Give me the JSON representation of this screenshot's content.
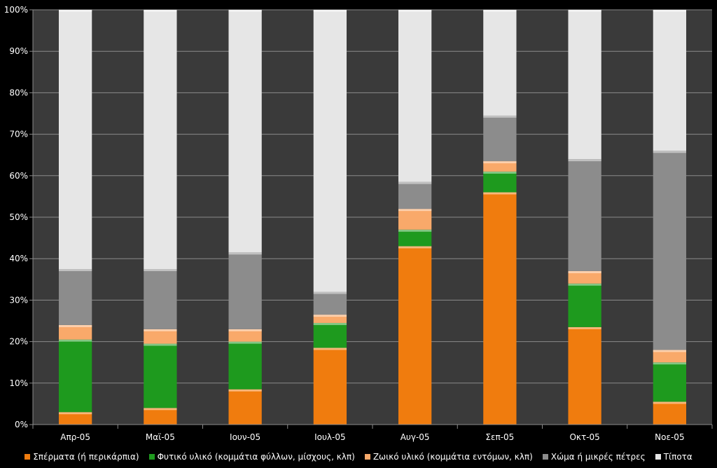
{
  "chart_data": {
    "type": "bar",
    "stacked": true,
    "percent": true,
    "categories": [
      "Απρ-05",
      "Μαϊ-05",
      "Ιουν-05",
      "Ιουλ-05",
      "Αυγ-05",
      "Σεπ-05",
      "Οκτ-05",
      "Νοε-05"
    ],
    "series": [
      {
        "name": "Σπέρματα (ή περικάρπια)",
        "color": "#f07c0e",
        "values": [
          3,
          4,
          8.5,
          18.5,
          43,
          56,
          23.5,
          5.5
        ]
      },
      {
        "name": "Φυτικό υλικό (κομμάτια φύλλων, μίσχους, κλπ)",
        "color": "#1e9a1e",
        "values": [
          17.5,
          15.5,
          11.5,
          6,
          4,
          5,
          10.5,
          9.5
        ]
      },
      {
        "name": "Ζωικό υλικό (κομμάτια εντόμων, κλπ)",
        "color": "#f9a96a",
        "values": [
          3.5,
          3.5,
          3,
          2,
          5,
          2.5,
          3,
          3
        ]
      },
      {
        "name": "Χώμα ή μικρές πέτρες",
        "color": "#8c8c8c",
        "values": [
          13.5,
          14.5,
          18.5,
          5.5,
          6.5,
          11,
          27,
          48
        ]
      },
      {
        "name": "Τίποτα",
        "color": "#e6e6e6",
        "values": [
          62.5,
          62.5,
          58.5,
          68,
          41.5,
          25.5,
          36,
          34
        ]
      }
    ],
    "yticks": [
      "0%",
      "10%",
      "20%",
      "30%",
      "40%",
      "50%",
      "60%",
      "70%",
      "80%",
      "90%",
      "100%"
    ],
    "ylim": [
      0,
      100
    ],
    "grid": true,
    "legend_position": "bottom",
    "background": "#3a3a3a"
  }
}
